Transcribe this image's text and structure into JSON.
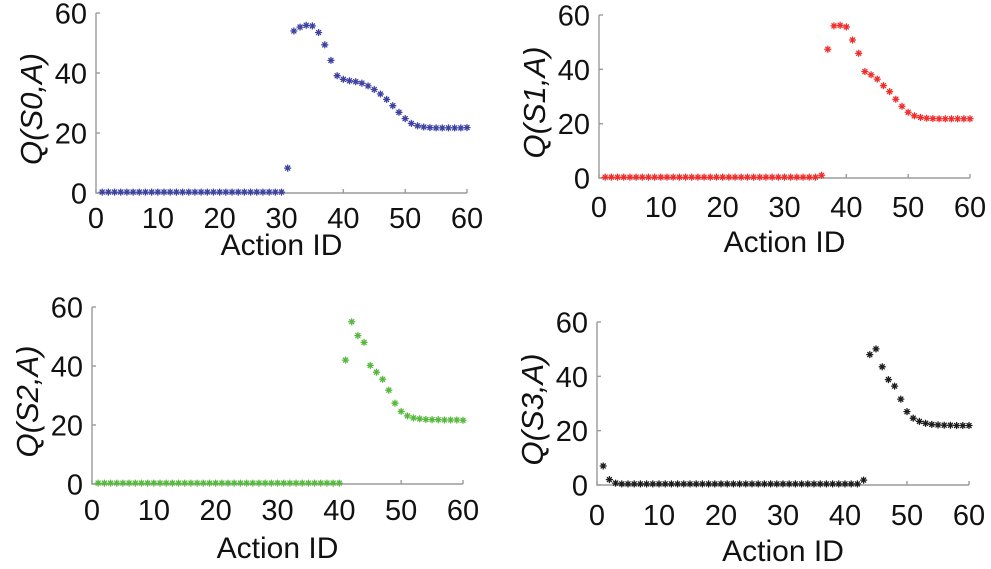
{
  "figure": {
    "background": "#ffffff",
    "axis_color": "#9b9b9b",
    "text_color": "#111111",
    "xlabel": "Action ID",
    "x_ticks": [
      0,
      10,
      20,
      30,
      40,
      50,
      60
    ],
    "y_ticks": [
      0,
      20,
      40,
      60
    ]
  },
  "chart_data": [
    {
      "type": "scatter",
      "name": "Q(S0,A)",
      "ylabel": "Q(S0,A)",
      "xlabel": "Action ID",
      "marker": "asterisk",
      "color": "#3d41a1",
      "xlim": [
        0,
        60
      ],
      "ylim": [
        0,
        60
      ],
      "x_ticks": [
        0,
        10,
        20,
        30,
        40,
        50,
        60
      ],
      "y_ticks": [
        0,
        20,
        40,
        60
      ],
      "grid": false,
      "legend": "none",
      "x": [
        1,
        2,
        3,
        4,
        5,
        6,
        7,
        8,
        9,
        10,
        11,
        12,
        13,
        14,
        15,
        16,
        17,
        18,
        19,
        20,
        21,
        22,
        23,
        24,
        25,
        26,
        27,
        28,
        29,
        30,
        31,
        32,
        33,
        34,
        35,
        36,
        37,
        38,
        39,
        40,
        41,
        42,
        43,
        44,
        45,
        46,
        47,
        48,
        49,
        50,
        51,
        52,
        53,
        54,
        55,
        56,
        57,
        58,
        59,
        60
      ],
      "y": [
        0.3,
        0.3,
        0.3,
        0.3,
        0.3,
        0.3,
        0.3,
        0.3,
        0.3,
        0.3,
        0.3,
        0.3,
        0.3,
        0.3,
        0.3,
        0.3,
        0.3,
        0.3,
        0.3,
        0.3,
        0.3,
        0.3,
        0.3,
        0.3,
        0.3,
        0.3,
        0.3,
        0.3,
        0.3,
        0.3,
        8.3,
        54.0,
        55.3,
        55.9,
        55.7,
        53.5,
        49.4,
        44.2,
        39.1,
        37.9,
        37.4,
        37.1,
        36.6,
        35.7,
        34.5,
        33.0,
        31.2,
        29.1,
        26.9,
        24.8,
        23.2,
        22.4,
        22.0,
        21.8,
        21.7,
        21.7,
        21.7,
        21.7,
        21.7,
        21.8
      ]
    },
    {
      "type": "scatter",
      "name": "Q(S1,A)",
      "ylabel": "Q(S1,A)",
      "xlabel": "Action ID",
      "marker": "asterisk",
      "color": "#f22c2c",
      "xlim": [
        0,
        60
      ],
      "ylim": [
        0,
        60
      ],
      "x_ticks": [
        0,
        10,
        20,
        30,
        40,
        50,
        60
      ],
      "y_ticks": [
        0,
        20,
        40,
        60
      ],
      "grid": false,
      "legend": "none",
      "x": [
        1,
        2,
        3,
        4,
        5,
        6,
        7,
        8,
        9,
        10,
        11,
        12,
        13,
        14,
        15,
        16,
        17,
        18,
        19,
        20,
        21,
        22,
        23,
        24,
        25,
        26,
        27,
        28,
        29,
        30,
        31,
        32,
        33,
        34,
        35,
        36,
        37,
        38,
        39,
        40,
        41,
        42,
        43,
        44,
        45,
        46,
        47,
        48,
        49,
        50,
        51,
        52,
        53,
        54,
        55,
        56,
        57,
        58,
        59,
        60
      ],
      "y": [
        0.3,
        0.3,
        0.3,
        0.3,
        0.3,
        0.3,
        0.3,
        0.3,
        0.3,
        0.3,
        0.3,
        0.3,
        0.3,
        0.3,
        0.3,
        0.3,
        0.3,
        0.3,
        0.3,
        0.3,
        0.3,
        0.3,
        0.3,
        0.3,
        0.3,
        0.3,
        0.3,
        0.3,
        0.3,
        0.3,
        0.3,
        0.3,
        0.3,
        0.3,
        0.3,
        1.0,
        47.4,
        56.0,
        56.2,
        55.6,
        50.8,
        45.9,
        39.2,
        38.0,
        36.4,
        34.0,
        31.8,
        29.0,
        26.4,
        24.2,
        22.9,
        22.3,
        22.0,
        21.9,
        21.8,
        21.8,
        21.8,
        21.8,
        21.8,
        21.8
      ]
    },
    {
      "type": "scatter",
      "name": "Q(S2,A)",
      "ylabel": "Q(S2,A)",
      "xlabel": "Action ID",
      "marker": "asterisk",
      "color": "#57b83e",
      "xlim": [
        0,
        60
      ],
      "ylim": [
        0,
        60
      ],
      "x_ticks": [
        0,
        10,
        20,
        30,
        40,
        50,
        60
      ],
      "y_ticks": [
        0,
        20,
        40,
        60
      ],
      "grid": false,
      "legend": "none",
      "x": [
        1,
        2,
        3,
        4,
        5,
        6,
        7,
        8,
        9,
        10,
        11,
        12,
        13,
        14,
        15,
        16,
        17,
        18,
        19,
        20,
        21,
        22,
        23,
        24,
        25,
        26,
        27,
        28,
        29,
        30,
        31,
        32,
        33,
        34,
        35,
        36,
        37,
        38,
        39,
        40,
        41,
        42,
        43,
        44,
        45,
        46,
        47,
        48,
        49,
        50,
        51,
        52,
        53,
        54,
        55,
        56,
        57,
        58,
        59,
        60
      ],
      "y": [
        0.3,
        0.3,
        0.3,
        0.3,
        0.3,
        0.3,
        0.3,
        0.3,
        0.3,
        0.3,
        0.3,
        0.3,
        0.3,
        0.3,
        0.3,
        0.3,
        0.3,
        0.3,
        0.3,
        0.3,
        0.3,
        0.3,
        0.3,
        0.3,
        0.3,
        0.3,
        0.3,
        0.3,
        0.3,
        0.3,
        0.3,
        0.3,
        0.3,
        0.3,
        0.3,
        0.3,
        0.3,
        0.3,
        0.3,
        0.3,
        42.0,
        55.0,
        50.3,
        48.0,
        40.2,
        37.9,
        35.5,
        31.8,
        27.4,
        24.6,
        23.1,
        22.4,
        22.1,
        21.9,
        21.8,
        21.8,
        21.7,
        21.7,
        21.7,
        21.6
      ]
    },
    {
      "type": "scatter",
      "name": "Q(S3,A)",
      "ylabel": "Q(S3,A)",
      "xlabel": "Action ID",
      "marker": "asterisk",
      "color": "#1c1c1c",
      "xlim": [
        0,
        60
      ],
      "ylim": [
        0,
        60
      ],
      "x_ticks": [
        0,
        10,
        20,
        30,
        40,
        50,
        60
      ],
      "y_ticks": [
        0,
        20,
        40,
        60
      ],
      "grid": false,
      "legend": "none",
      "x": [
        1,
        2,
        3,
        4,
        5,
        6,
        7,
        8,
        9,
        10,
        11,
        12,
        13,
        14,
        15,
        16,
        17,
        18,
        19,
        20,
        21,
        22,
        23,
        24,
        25,
        26,
        27,
        28,
        29,
        30,
        31,
        32,
        33,
        34,
        35,
        36,
        37,
        38,
        39,
        40,
        41,
        42,
        43,
        44,
        45,
        46,
        47,
        48,
        49,
        50,
        51,
        52,
        53,
        54,
        55,
        56,
        57,
        58,
        59,
        60
      ],
      "y": [
        7.0,
        2.0,
        0.7,
        0.4,
        0.4,
        0.4,
        0.4,
        0.4,
        0.4,
        0.4,
        0.4,
        0.4,
        0.4,
        0.4,
        0.4,
        0.4,
        0.4,
        0.4,
        0.4,
        0.4,
        0.4,
        0.4,
        0.4,
        0.4,
        0.4,
        0.4,
        0.4,
        0.4,
        0.4,
        0.4,
        0.4,
        0.4,
        0.4,
        0.4,
        0.4,
        0.4,
        0.4,
        0.4,
        0.4,
        0.4,
        0.4,
        0.4,
        1.8,
        48.0,
        50.1,
        43.5,
        38.8,
        36.4,
        31.6,
        27.0,
        24.6,
        23.4,
        22.7,
        22.3,
        22.1,
        22.0,
        22.0,
        21.9,
        21.9,
        21.9
      ]
    }
  ]
}
